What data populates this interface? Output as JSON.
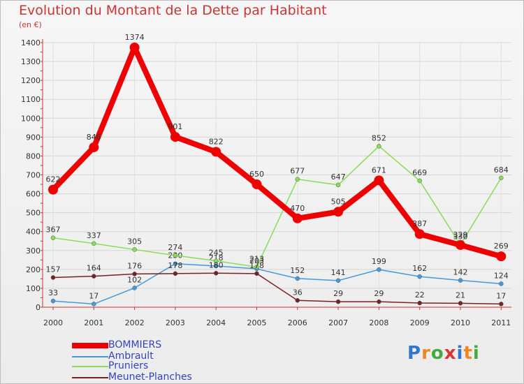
{
  "chart_data": {
    "type": "line",
    "title": "Evolution du Montant de la Dette par Habitant",
    "subtitle": "(en €)",
    "categories": [
      "2000",
      "2001",
      "2002",
      "2003",
      "2004",
      "2005",
      "2006",
      "2007",
      "2008",
      "2009",
      "2010",
      "2011"
    ],
    "ylim": [
      0,
      1400
    ],
    "yticks": [
      "0",
      "100",
      "200",
      "300",
      "400",
      "500",
      "600",
      "700",
      "800",
      "900",
      "1000",
      "1100",
      "1200",
      "1300",
      "1400"
    ],
    "grid": true,
    "legend_position": "bottom-left",
    "series": [
      {
        "name": "BOMMIERS",
        "color": "#ee0000",
        "values": [
          622,
          846,
          1374,
          901,
          822,
          650,
          470,
          505,
          671,
          387,
          329,
          269
        ],
        "labels": [
          "622",
          "846",
          "1374",
          "901",
          "822",
          "650",
          "470",
          "505",
          "671",
          "387",
          "329",
          "269"
        ]
      },
      {
        "name": "Ambrault",
        "color": "#4499dd",
        "values": [
          33,
          17,
          102,
          230,
          218,
          203,
          152,
          141,
          199,
          162,
          142,
          124
        ],
        "labels": [
          "33",
          "17",
          "102",
          "230",
          "218",
          "203",
          "152",
          "141",
          "199",
          "162",
          "142",
          "124"
        ]
      },
      {
        "name": "Pruniers",
        "color": "#88dd55",
        "values": [
          367,
          337,
          305,
          274,
          245,
          213,
          677,
          647,
          852,
          669,
          330,
          684
        ],
        "labels": [
          "367",
          "337",
          "305",
          "274",
          "245",
          "213",
          "677",
          "647",
          "852",
          "669",
          "330",
          "684"
        ]
      },
      {
        "name": "Meunet-Planches",
        "color": "#772222",
        "values": [
          157,
          164,
          176,
          178,
          180,
          178,
          36,
          29,
          29,
          22,
          21,
          17
        ],
        "labels": [
          "157",
          "164",
          "176",
          "178",
          "180",
          "178",
          "36",
          "29",
          "29",
          "22",
          "21",
          "17"
        ]
      }
    ]
  },
  "logo": {
    "letters": [
      "P",
      "r",
      "o",
      "x",
      "i",
      "t",
      "i"
    ],
    "colors": [
      "#3377cc",
      "#ee8822",
      "#44aa44",
      "#dd3333",
      "#3377cc",
      "#ee8822",
      "#44aa44"
    ]
  }
}
